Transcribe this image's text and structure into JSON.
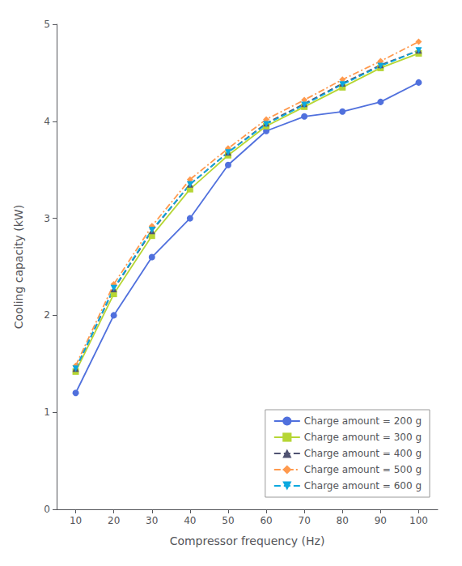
{
  "chart_data": {
    "type": "line",
    "x": [
      10,
      20,
      30,
      40,
      50,
      60,
      70,
      80,
      90,
      100
    ],
    "series": [
      {
        "name": "Charge amount = 200 g",
        "values": [
          1.2,
          2.0,
          2.6,
          3.0,
          3.55,
          3.9,
          4.05,
          4.1,
          4.2,
          4.4
        ],
        "marker": "circle",
        "line_style": "solid"
      },
      {
        "name": "Charge amount = 300 g",
        "values": [
          1.42,
          2.22,
          2.82,
          3.3,
          3.65,
          3.95,
          4.15,
          4.35,
          4.55,
          4.7
        ],
        "marker": "square",
        "line_style": "solid"
      },
      {
        "name": "Charge amount = 400 g",
        "values": [
          1.45,
          2.27,
          2.87,
          3.35,
          3.68,
          3.98,
          4.18,
          4.39,
          4.58,
          4.73
        ],
        "marker": "triangle-up",
        "line_style": "dashed"
      },
      {
        "name": "Charge amount = 500 g",
        "values": [
          1.48,
          2.32,
          2.92,
          3.4,
          3.72,
          4.02,
          4.22,
          4.43,
          4.62,
          4.82
        ],
        "marker": "diamond",
        "line_style": "dashdot"
      },
      {
        "name": "Charge amount = 600 g",
        "values": [
          1.45,
          2.28,
          2.88,
          3.35,
          3.68,
          3.97,
          4.17,
          4.38,
          4.57,
          4.73
        ],
        "marker": "triangle-down",
        "line_style": "dashed"
      }
    ],
    "xlabel": "Compressor frequency (Hz)",
    "ylabel": "Cooling capacity (kW)",
    "xlim": [
      5,
      105
    ],
    "ylim": [
      0,
      5
    ],
    "xticks": [
      10,
      20,
      30,
      40,
      50,
      60,
      70,
      80,
      90,
      100
    ],
    "yticks": [
      0,
      1,
      2,
      3,
      4,
      5
    ],
    "legend": "lower right",
    "grid": false
  }
}
